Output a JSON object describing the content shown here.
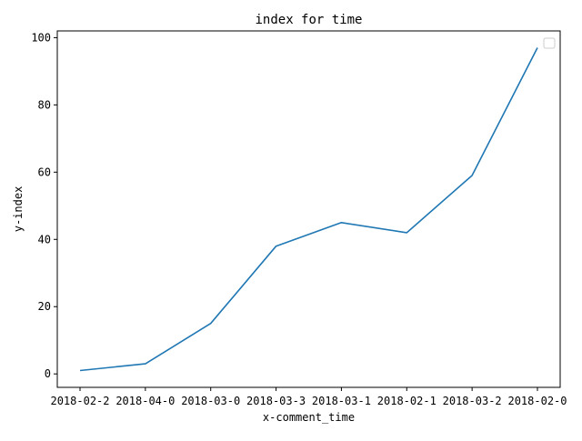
{
  "chart_data": {
    "type": "line",
    "title": "index for time",
    "xlabel": "x-comment_time",
    "ylabel": "y-index",
    "categories": [
      "2018-02-2",
      "2018-04-0",
      "2018-03-0",
      "2018-03-3",
      "2018-03-1",
      "2018-02-1",
      "2018-03-2",
      "2018-02-0"
    ],
    "series": [
      {
        "values": [
          1,
          3,
          15,
          38,
          45,
          42,
          59,
          97
        ]
      }
    ],
    "ylim": [
      -4,
      102
    ],
    "yticks": [
      0,
      20,
      40,
      60,
      80,
      100
    ],
    "grid": false,
    "legend": "top-right",
    "colors": {
      "line": "#1f77b4",
      "axes": "#000000",
      "legend_border": "#cccccc"
    }
  }
}
